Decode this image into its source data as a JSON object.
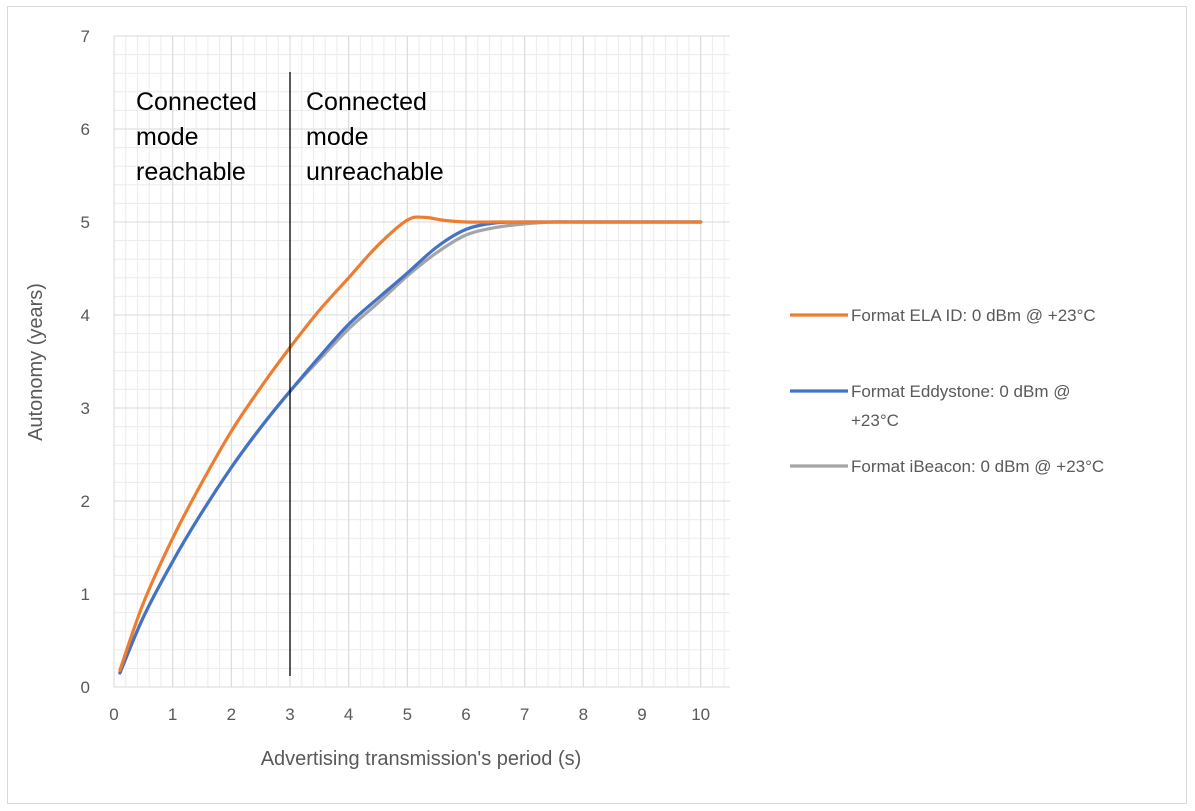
{
  "chart_data": {
    "type": "line",
    "xlabel": "Advertising transmission's period (s)",
    "ylabel": "Autonomy (years)",
    "xlim": [
      0,
      10.5
    ],
    "ylim": [
      0,
      7
    ],
    "x_ticks": [
      "0",
      "1",
      "2",
      "3",
      "4",
      "5",
      "6",
      "7",
      "8",
      "9",
      "10"
    ],
    "y_ticks": [
      "0",
      "1",
      "2",
      "3",
      "4",
      "5",
      "6",
      "7"
    ],
    "grid": true,
    "minor_grid": true,
    "legend_position": "right",
    "annotations": [
      {
        "lines": [
          "Connected",
          "mode",
          "reachable"
        ]
      },
      {
        "lines": [
          "Connected",
          "mode",
          "unreachable"
        ]
      }
    ],
    "divider_x": 3,
    "series": [
      {
        "name": "Format ELA ID: 0 dBm @ +23°C",
        "legend_lines": [
          "Format ELA ID: 0 dBm @ +23°C"
        ],
        "color": "#ed7d31",
        "x": [
          0.1,
          0.5,
          1,
          1.5,
          2,
          2.5,
          3,
          3.5,
          4,
          4.5,
          5,
          5.3,
          5.6,
          6,
          6.5,
          7,
          8,
          9,
          10
        ],
        "y": [
          0.18,
          0.9,
          1.6,
          2.2,
          2.75,
          3.22,
          3.65,
          4.05,
          4.4,
          4.75,
          5.02,
          5.05,
          5.02,
          5.0,
          5.0,
          5.0,
          5.0,
          5.0,
          5.0
        ]
      },
      {
        "name": "Format Eddystone: 0 dBm @ +23°C",
        "legend_lines": [
          "Format Eddystone: 0 dBm @",
          "+23°C"
        ],
        "color": "#4472c4",
        "x": [
          0.1,
          0.5,
          1,
          1.5,
          2,
          2.5,
          3,
          3.5,
          4,
          4.5,
          5,
          5.5,
          6,
          6.5,
          7,
          7.5,
          8,
          9,
          10
        ],
        "y": [
          0.15,
          0.75,
          1.35,
          1.88,
          2.36,
          2.79,
          3.18,
          3.55,
          3.9,
          4.18,
          4.45,
          4.73,
          4.92,
          4.99,
          5.0,
          5.0,
          5.0,
          5.0,
          5.0
        ]
      },
      {
        "name": "Format iBeacon: 0 dBm @ +23°C",
        "legend_lines": [
          "Format iBeacon: 0 dBm @ +23°C"
        ],
        "color": "#a5a5a5",
        "x": [
          0.1,
          0.5,
          1,
          1.5,
          2,
          2.5,
          3,
          3.5,
          4,
          4.5,
          5,
          5.5,
          6,
          6.5,
          7,
          7.5,
          8,
          9,
          10
        ],
        "y": [
          0.15,
          0.75,
          1.35,
          1.88,
          2.36,
          2.79,
          3.18,
          3.52,
          3.85,
          4.13,
          4.42,
          4.67,
          4.86,
          4.94,
          4.98,
          5.0,
          5.0,
          5.0,
          5.0
        ]
      }
    ]
  }
}
